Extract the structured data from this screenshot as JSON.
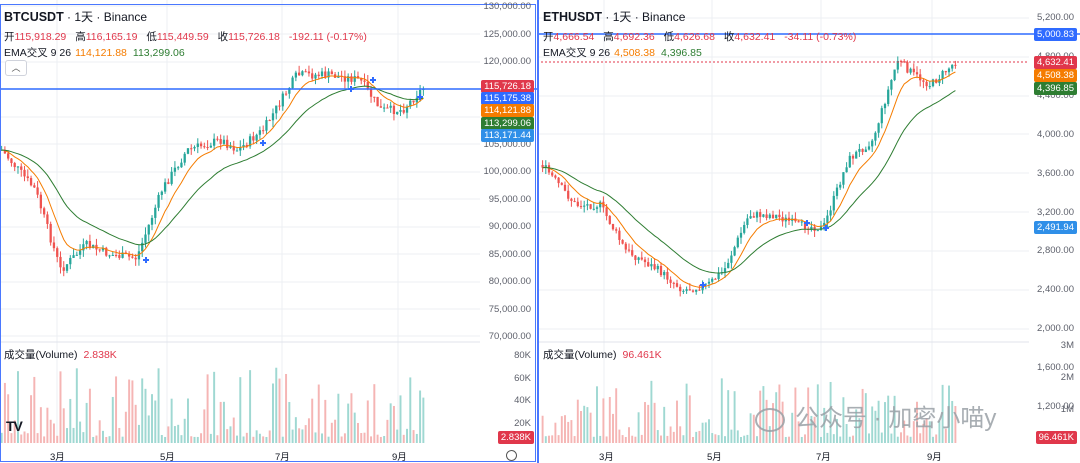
{
  "left": {
    "symbol": "BTCUSDT",
    "title_rest": " · 1天 · Binance",
    "ohlc": [
      {
        "k": "开",
        "v": "115,918.29"
      },
      {
        "k": "高",
        "v": "116,165.19"
      },
      {
        "k": "低",
        "v": "115,449.59"
      },
      {
        "k": "收",
        "v": "115,726.18"
      }
    ],
    "change": "-192.11 (-0.17%)",
    "ema_label": "EMA交叉 9 26",
    "ema_fast": "114,121.88",
    "ema_slow": "113,299.06",
    "toggle_icon": "chevron-up-icon",
    "volume_label": "成交量(Volume)",
    "volume_value": "2.838K",
    "y_axis": [
      "130,000.00",
      "125,000.00",
      "120,000.00",
      "115,000.00",
      "110,000.00",
      "105,000.00",
      "100,000.00",
      "95,000.00",
      "90,000.00",
      "85,000.00",
      "80,000.00",
      "75,000.00",
      "70,000.00"
    ],
    "vol_axis": [
      "80K",
      "60K",
      "40K",
      "20K"
    ],
    "x_axis": [
      "3月",
      "5月",
      "7月",
      "9月"
    ],
    "price_tags": [
      {
        "text": "115,726.18",
        "color": "#e0374b"
      },
      {
        "text": "115,175.38",
        "color": "#2f6bff"
      },
      {
        "text": "114,121.88",
        "color": "#f57c00"
      },
      {
        "text": "113,299.06",
        "color": "#2e7d32"
      },
      {
        "text": "113,171.44",
        "color": "#2f8fe8"
      }
    ],
    "volume_tag": {
      "text": "2.838K",
      "color": "#e0374b"
    },
    "brand": "TV"
  },
  "right": {
    "symbol": "ETHUSDT",
    "title_rest": " · 1天 · Binance",
    "ohlc": [
      {
        "k": "开",
        "v": "4,666.54"
      },
      {
        "k": "高",
        "v": "4,692.36"
      },
      {
        "k": "低",
        "v": "4,626.68"
      },
      {
        "k": "收",
        "v": "4,632.41"
      }
    ],
    "change": "-34.11 (-0.73%)",
    "ema_label": "EMA交叉 9 26",
    "ema_fast": "4,508.38",
    "ema_slow": "4,396.85",
    "volume_label": "成交量(Volume)",
    "volume_value": "96.461K",
    "y_axis": [
      "5,200.00",
      "4,800.00",
      "4,400.00",
      "4,000.00",
      "3,600.00",
      "3,200.00",
      "2,800.00",
      "2,400.00",
      "2,000.00",
      "1,600.00",
      "1,200.00"
    ],
    "vol_axis": [
      "3M",
      "2M",
      "1M"
    ],
    "x_axis": [
      "3月",
      "5月",
      "7月",
      "9月"
    ],
    "price_tags": [
      {
        "text": "5,000.83",
        "color": "#2f6bff"
      },
      {
        "text": "4,632.41",
        "color": "#e0374b"
      },
      {
        "text": "4,508.38",
        "color": "#f57c00"
      },
      {
        "text": "4,396.85",
        "color": "#2e7d32"
      },
      {
        "text": "2,491.94",
        "color": "#2f8fe8"
      }
    ],
    "volume_tag": {
      "text": "96.461K",
      "color": "#e0374b"
    }
  },
  "watermark": "公众号 · 加密小喵y",
  "colors": {
    "up": "#26a69a",
    "down": "#ef5350",
    "ema_fast": "#f57c00",
    "ema_slow": "#2e7d32",
    "hline": "#2f6bff"
  }
}
